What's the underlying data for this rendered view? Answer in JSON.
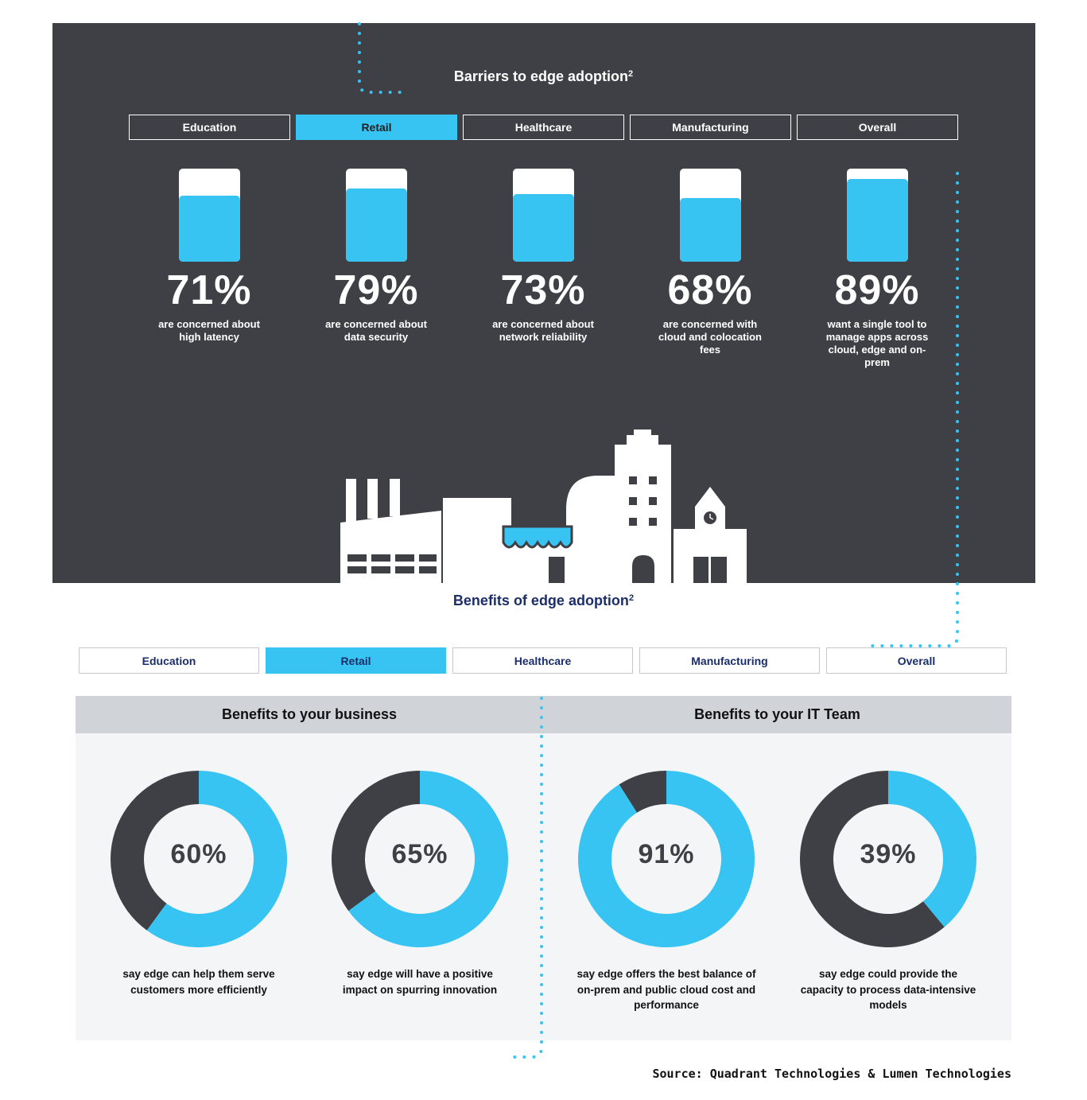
{
  "colors": {
    "dark": "#3f4045",
    "accent": "#38c4f2",
    "navy": "#1b2e6a",
    "header": "#d0d3d8"
  },
  "barriers": {
    "title": "Barriers to edge adoption",
    "superscript": "2",
    "tabs": [
      {
        "label": "Education",
        "active": false
      },
      {
        "label": "Retail",
        "active": true
      },
      {
        "label": "Healthcare",
        "active": false
      },
      {
        "label": "Manufacturing",
        "active": false
      },
      {
        "label": "Overall",
        "active": false
      }
    ],
    "stats": [
      {
        "pct": "71%",
        "fill": 0.71,
        "desc": "are concerned about high latency"
      },
      {
        "pct": "79%",
        "fill": 0.79,
        "desc": "are concerned about data security"
      },
      {
        "pct": "73%",
        "fill": 0.73,
        "desc": "are concerned about network reliability"
      },
      {
        "pct": "68%",
        "fill": 0.68,
        "desc": "are concerned with cloud and colocation fees"
      },
      {
        "pct": "89%",
        "fill": 0.89,
        "desc": "want a single tool to manage apps across cloud, edge and on-prem"
      }
    ]
  },
  "benefits": {
    "title": "Benefits of edge adoption",
    "superscript": "2",
    "tabs": [
      {
        "label": "Education",
        "active": false
      },
      {
        "label": "Retail",
        "active": true
      },
      {
        "label": "Healthcare",
        "active": false
      },
      {
        "label": "Manufacturing",
        "active": false
      },
      {
        "label": "Overall",
        "active": false
      }
    ],
    "headers": [
      "Benefits to your business",
      "Benefits to your IT Team"
    ],
    "donuts": [
      {
        "pct": "60%",
        "value": 0.6,
        "desc": "say edge can help them serve customers more efficiently"
      },
      {
        "pct": "65%",
        "value": 0.65,
        "desc": "say edge will have a positive impact on spurring innovation"
      },
      {
        "pct": "91%",
        "value": 0.91,
        "desc": "say edge offers the best balance of on-prem and public cloud cost and performance"
      },
      {
        "pct": "39%",
        "value": 0.39,
        "desc": "say edge could provide the capacity to process data-intensive models"
      }
    ]
  },
  "source": "Source: Quadrant Technologies & Lumen Technologies"
}
